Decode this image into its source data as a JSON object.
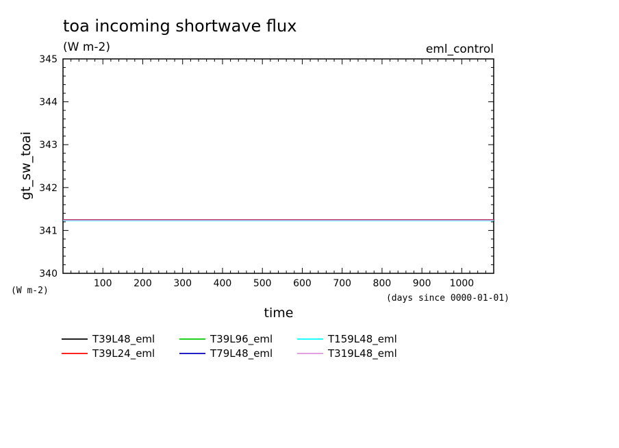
{
  "chart_data": {
    "type": "line",
    "title": "toa incoming shortwave flux",
    "units": "(W m-2)",
    "experiment": "eml_control",
    "xlabel": "time",
    "xunits": "(days since 0000-01-01)",
    "ylabel": "gt_sw_toai",
    "yunits": "(W m-2)",
    "xlim": [
      0,
      1080
    ],
    "ylim": [
      340,
      345
    ],
    "xticks": [
      100,
      200,
      300,
      400,
      500,
      600,
      700,
      800,
      900,
      1000
    ],
    "yticks": [
      340,
      341,
      342,
      343,
      344,
      345
    ],
    "grid": false,
    "legend_position": "bottom",
    "series": [
      {
        "name": "T39L48_eml",
        "color": "#000000",
        "x": [
          0,
          1080
        ],
        "y": [
          341.25,
          341.25
        ]
      },
      {
        "name": "T39L24_eml",
        "color": "#ff0000",
        "x": [
          0,
          1080
        ],
        "y": [
          341.25,
          341.25
        ]
      },
      {
        "name": "T39L96_eml",
        "color": "#00cc00",
        "x": [
          0,
          1080
        ],
        "y": [
          341.24,
          341.24
        ]
      },
      {
        "name": "T79L48_eml",
        "color": "#0000bb",
        "x": [
          0,
          1080
        ],
        "y": [
          341.24,
          341.24
        ]
      },
      {
        "name": "T159L48_eml",
        "color": "#00ffff",
        "x": [
          0,
          1080
        ],
        "y": [
          341.23,
          341.23
        ]
      },
      {
        "name": "T319L48_eml",
        "color": "#e090e0",
        "x": [
          0,
          1080
        ],
        "y": [
          341.24,
          341.24
        ]
      }
    ]
  }
}
